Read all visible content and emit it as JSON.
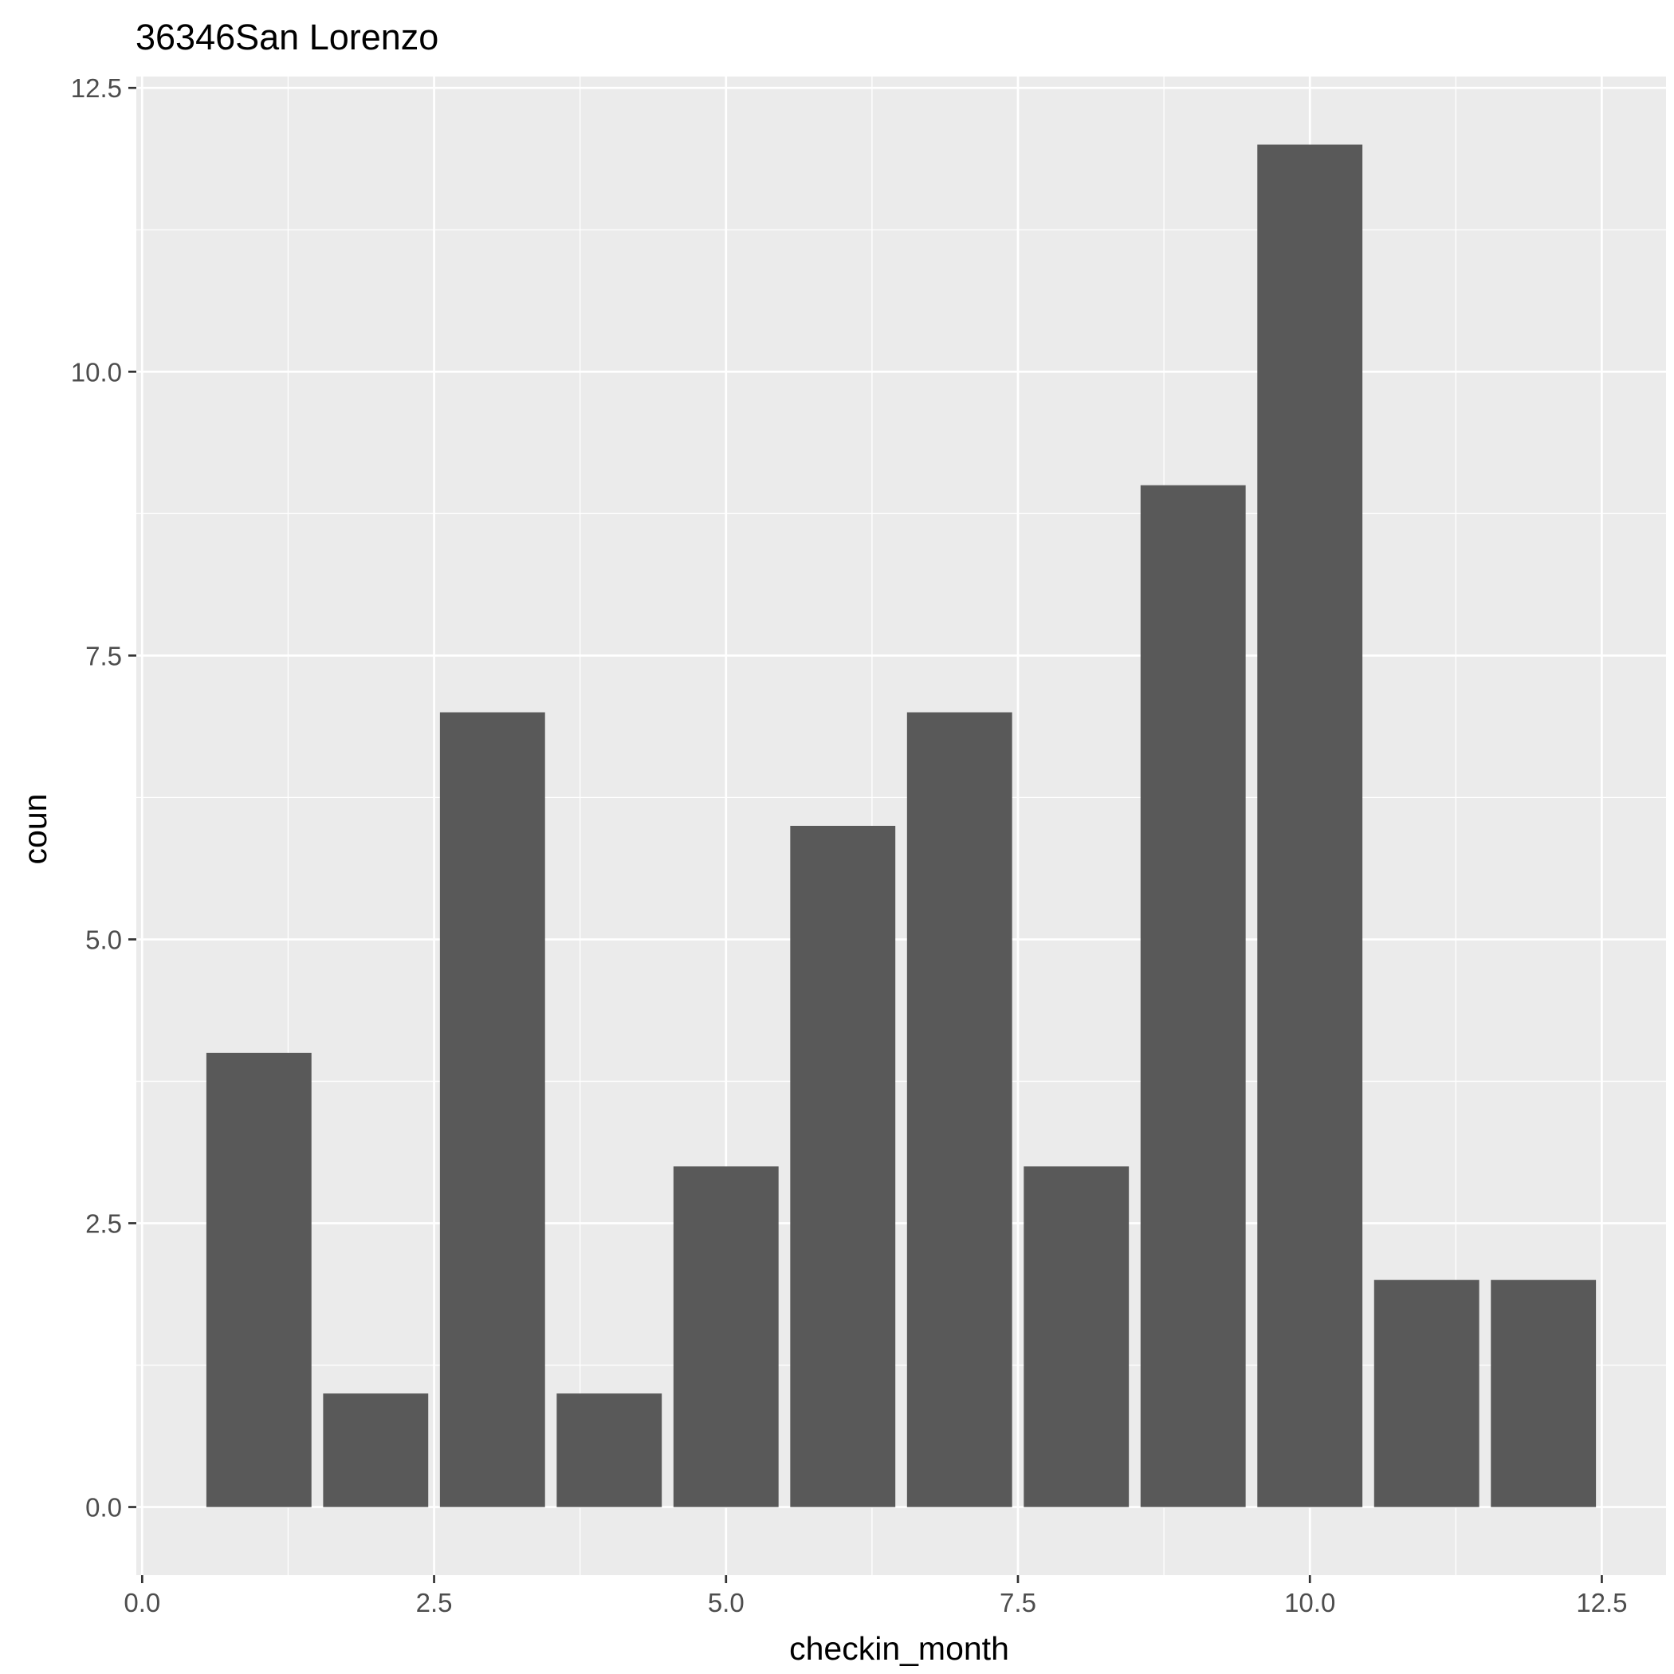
{
  "chart_data": {
    "type": "bar",
    "title": "36346San Lorenzo",
    "xlabel": "checkin_month",
    "ylabel": "coun",
    "x": [
      1,
      2,
      3,
      4,
      5,
      6,
      7,
      8,
      9,
      10,
      11,
      12
    ],
    "values": [
      4,
      1,
      7,
      1,
      3,
      6,
      7,
      3,
      9,
      12,
      2,
      2
    ],
    "xlim": [
      -0.05,
      13.05
    ],
    "ylim": [
      -0.6,
      12.6
    ],
    "xticks": [
      0.0,
      2.5,
      5.0,
      7.5,
      10.0,
      12.5
    ],
    "xtick_labels": [
      "0.0",
      "2.5",
      "5.0",
      "7.5",
      "10.0",
      "12.5"
    ],
    "yticks": [
      0.0,
      2.5,
      5.0,
      7.5,
      10.0,
      12.5
    ],
    "ytick_labels": [
      "0.0",
      "2.5",
      "5.0",
      "7.5",
      "10.0",
      "12.5"
    ],
    "grid": true,
    "legend": "none",
    "colors": {
      "bar": "#595959",
      "panel": "#ebebeb",
      "grid": "#ffffff",
      "tick_text": "#4d4d4d",
      "axis_title": "#000000"
    }
  }
}
